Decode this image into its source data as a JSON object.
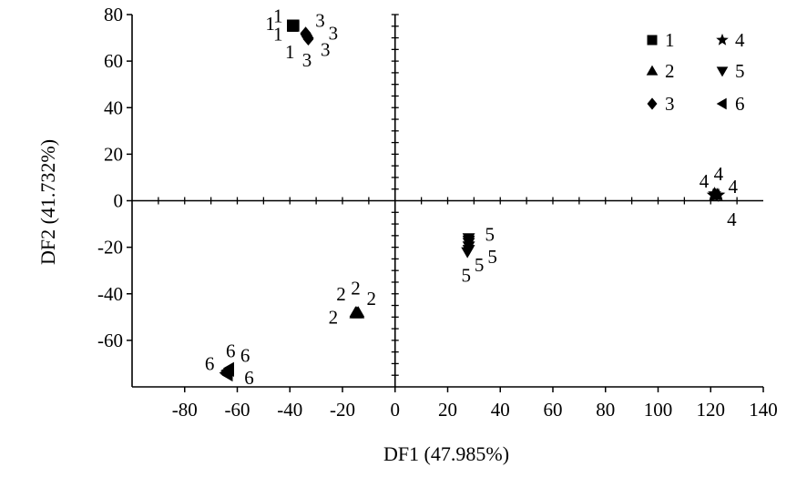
{
  "chart_data": {
    "type": "scatter",
    "xlabel": "DF1 (47.985%)",
    "ylabel": "DF2 (41.732%)",
    "xlim": [
      -100,
      140
    ],
    "ylim": [
      -80,
      80
    ],
    "x_ticks": [
      -80,
      -60,
      -40,
      -20,
      0,
      20,
      40,
      60,
      80,
      100,
      120,
      140
    ],
    "x_tick_labels": [
      "-80",
      "-60",
      "-40",
      "-20",
      "0",
      "20",
      "40",
      "60",
      "80",
      "100",
      "120",
      "140"
    ],
    "y_ticks": [
      -60,
      -40,
      -20,
      0,
      20,
      40,
      60,
      80
    ],
    "y_tick_labels": [
      "-60",
      "-40",
      "-20",
      "0",
      "20",
      "40",
      "60",
      "80"
    ],
    "grid": false,
    "axes_through_origin": true,
    "legend": {
      "position": "top-right",
      "columns": 2
    },
    "series": [
      {
        "name": "1",
        "marker": "square",
        "points": [
          [
            -39,
            75.5
          ],
          [
            -39,
            75
          ],
          [
            -38.5,
            75.5
          ],
          [
            -39,
            75
          ],
          [
            -38.5,
            75
          ],
          [
            -39,
            75.5
          ]
        ],
        "labels": [
          {
            "text": "1",
            "x": -44.5,
            "y": 79.5
          },
          {
            "text": "1",
            "x": -47.5,
            "y": 76
          },
          {
            "text": "1",
            "x": -44.5,
            "y": 71.5
          },
          {
            "text": "1",
            "x": -40,
            "y": 64
          }
        ]
      },
      {
        "name": "2",
        "marker": "triangle-up",
        "points": [
          [
            -15,
            -48
          ],
          [
            -14.5,
            -48
          ],
          [
            -14,
            -48.5
          ],
          [
            -15,
            -48.5
          ],
          [
            -14.5,
            -48.5
          ],
          [
            -14,
            -48
          ]
        ],
        "labels": [
          {
            "text": "2",
            "x": -20.5,
            "y": -40
          },
          {
            "text": "2",
            "x": -15,
            "y": -37.5
          },
          {
            "text": "2",
            "x": -9,
            "y": -42
          },
          {
            "text": "2",
            "x": -23.5,
            "y": -50
          }
        ]
      },
      {
        "name": "3",
        "marker": "diamond",
        "points": [
          [
            -34,
            72
          ],
          [
            -33.5,
            71
          ],
          [
            -33,
            70
          ],
          [
            -33.5,
            70.5
          ],
          [
            -34,
            71.5
          ],
          [
            -33,
            69.5
          ]
        ],
        "labels": [
          {
            "text": "3",
            "x": -28.5,
            "y": 77.5
          },
          {
            "text": "3",
            "x": -23.5,
            "y": 72
          },
          {
            "text": "3",
            "x": -26.5,
            "y": 65
          },
          {
            "text": "3",
            "x": -33.5,
            "y": 60.5
          }
        ]
      },
      {
        "name": "4",
        "marker": "star",
        "points": [
          [
            121,
            2.5
          ],
          [
            122,
            2.5
          ],
          [
            123,
            2.5
          ],
          [
            121.5,
            2
          ],
          [
            122.5,
            2.5
          ],
          [
            121.5,
            3
          ]
        ],
        "labels": [
          {
            "text": "4",
            "x": 117.5,
            "y": 8.5
          },
          {
            "text": "4",
            "x": 123,
            "y": 11.5
          },
          {
            "text": "4",
            "x": 128.5,
            "y": 6
          },
          {
            "text": "4",
            "x": 128,
            "y": -8
          }
        ]
      },
      {
        "name": "5",
        "marker": "triangle-down",
        "points": [
          [
            28,
            -16
          ],
          [
            28,
            -18
          ],
          [
            28,
            -19.5
          ],
          [
            28,
            -21
          ],
          [
            27.5,
            -22
          ],
          [
            28,
            -17
          ]
        ],
        "labels": [
          {
            "text": "5",
            "x": 36,
            "y": -14.5
          },
          {
            "text": "5",
            "x": 37,
            "y": -24
          },
          {
            "text": "5",
            "x": 32,
            "y": -27.5
          },
          {
            "text": "5",
            "x": 27,
            "y": -32
          }
        ]
      },
      {
        "name": "6",
        "marker": "triangle-left",
        "points": [
          [
            -63,
            -72
          ],
          [
            -64,
            -73
          ],
          [
            -64.5,
            -74
          ],
          [
            -63.5,
            -75
          ],
          [
            -63,
            -73
          ],
          [
            -64,
            -74.5
          ]
        ],
        "labels": [
          {
            "text": "6",
            "x": -62.5,
            "y": -64.5
          },
          {
            "text": "6",
            "x": -57,
            "y": -66.5
          },
          {
            "text": "6",
            "x": -70.5,
            "y": -70
          },
          {
            "text": "6",
            "x": -55.5,
            "y": -76
          }
        ]
      }
    ]
  }
}
